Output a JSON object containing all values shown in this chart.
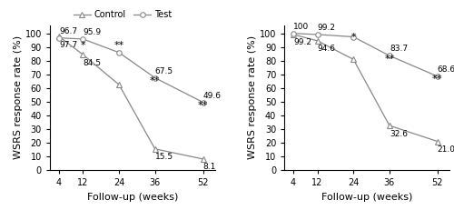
{
  "x": [
    4,
    12,
    24,
    36,
    52
  ],
  "left_control": [
    97.7,
    84.5,
    62.5,
    15.5,
    8.1
  ],
  "left_test": [
    96.7,
    95.9,
    86.0,
    67.5,
    49.6
  ],
  "right_control": [
    99.2,
    94.6,
    81.0,
    32.6,
    21.0
  ],
  "right_test": [
    100,
    99.2,
    97.5,
    83.7,
    68.6
  ],
  "left_labels_control": [
    {
      "val": "97.7",
      "xi": 4,
      "xoff": 0,
      "yoff": -3,
      "ha": "left",
      "va": "top"
    },
    {
      "val": "84.5",
      "xi": 12,
      "xoff": 0,
      "yoff": -3,
      "ha": "left",
      "va": "top"
    },
    {
      "val": "15.5",
      "xi": 36,
      "xoff": 0,
      "yoff": -3,
      "ha": "left",
      "va": "top"
    },
    {
      "val": "8.1",
      "xi": 52,
      "xoff": 0,
      "yoff": -3,
      "ha": "left",
      "va": "top"
    }
  ],
  "left_labels_test": [
    {
      "val": "96.7",
      "xi": 4,
      "xoff": 0,
      "yoff": 2,
      "ha": "left",
      "va": "bottom"
    },
    {
      "val": "95.9",
      "xi": 12,
      "xoff": 0,
      "yoff": 2,
      "ha": "left",
      "va": "bottom"
    },
    {
      "val": "67.5",
      "xi": 36,
      "xoff": 0,
      "yoff": 2,
      "ha": "left",
      "va": "bottom"
    },
    {
      "val": "49.6",
      "xi": 52,
      "xoff": 0,
      "yoff": 2,
      "ha": "left",
      "va": "bottom"
    }
  ],
  "right_labels_control": [
    {
      "val": "99.2",
      "xi": 4,
      "xoff": 0,
      "yoff": -3,
      "ha": "left",
      "va": "top"
    },
    {
      "val": "94.6",
      "xi": 12,
      "xoff": 0,
      "yoff": -3,
      "ha": "left",
      "va": "top"
    },
    {
      "val": "32.6",
      "xi": 36,
      "xoff": 0,
      "yoff": -3,
      "ha": "left",
      "va": "top"
    },
    {
      "val": "21.0",
      "xi": 52,
      "xoff": 0,
      "yoff": -3,
      "ha": "left",
      "va": "top"
    }
  ],
  "right_labels_test": [
    {
      "val": "100",
      "xi": 4,
      "xoff": 0,
      "yoff": 2,
      "ha": "left",
      "va": "bottom"
    },
    {
      "val": "99.2",
      "xi": 12,
      "xoff": 0,
      "yoff": 2,
      "ha": "left",
      "va": "bottom"
    },
    {
      "val": "83.7",
      "xi": 36,
      "xoff": 0,
      "yoff": 2,
      "ha": "left",
      "va": "bottom"
    },
    {
      "val": "68.6",
      "xi": 52,
      "xoff": 0,
      "yoff": 2,
      "ha": "left",
      "va": "bottom"
    }
  ],
  "left_stars": [
    {
      "xi": 12,
      "yi": 88,
      "text": "*"
    },
    {
      "xi": 24,
      "yi": 88,
      "text": "**"
    },
    {
      "xi": 36,
      "yi": 62,
      "text": "**"
    },
    {
      "xi": 52,
      "yi": 44,
      "text": "**"
    }
  ],
  "right_stars": [
    {
      "xi": 24,
      "yi": 94,
      "text": "*"
    },
    {
      "xi": 36,
      "yi": 78,
      "text": "**"
    },
    {
      "xi": 52,
      "yi": 63,
      "text": "**"
    }
  ],
  "xlabel": "Follow-up (weeks)",
  "ylabel": "WSRS response rate (%)",
  "ylim": [
    0,
    106
  ],
  "yticks": [
    0,
    10,
    20,
    30,
    40,
    50,
    60,
    70,
    80,
    90,
    100
  ],
  "xticks": [
    4,
    12,
    24,
    36,
    52
  ],
  "legend_labels": [
    "Control",
    "Test"
  ],
  "line_color": "#888888",
  "marker_control": "^",
  "marker_test": "o",
  "markersize": 4,
  "fontsize_label": 8,
  "fontsize_annot": 6.5,
  "fontsize_star": 8,
  "fontsize_legend": 7,
  "fontsize_tick": 7
}
